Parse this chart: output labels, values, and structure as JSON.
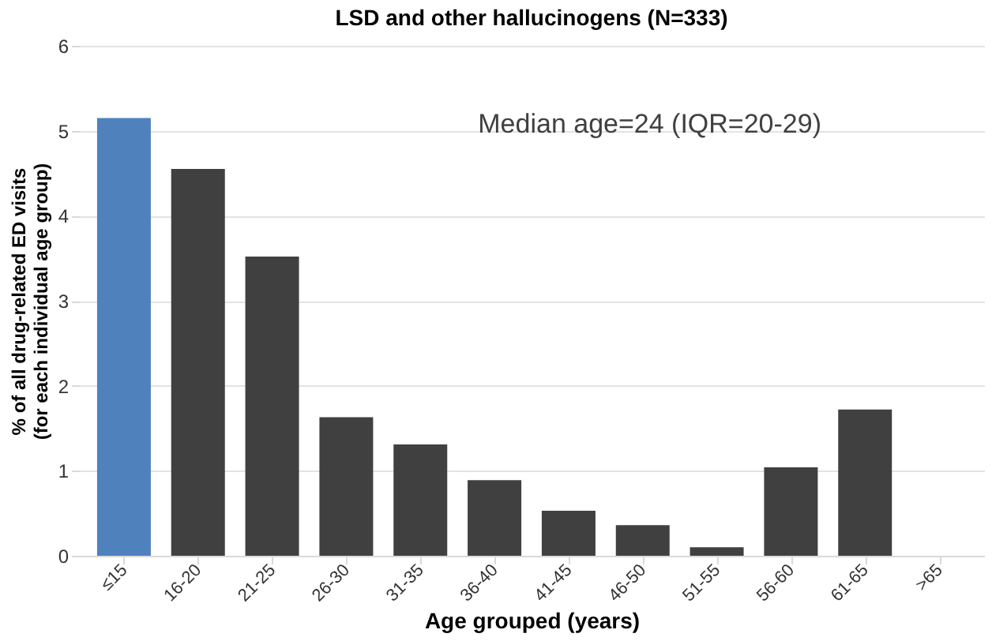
{
  "chart_data": {
    "type": "bar",
    "title": "LSD and other hallucinogens (N=333)",
    "xlabel": "Age grouped (years)",
    "ylabel": "% of all drug-related ED visits\n(for each individual age group)",
    "categories": [
      "≤15",
      "16-20",
      "21-25",
      "26-30",
      "31-35",
      "36-40",
      "41-45",
      "46-50",
      "51-55",
      "56-60",
      "61-65",
      ">65"
    ],
    "values": [
      5.15,
      4.55,
      3.52,
      1.63,
      1.31,
      0.89,
      0.53,
      0.36,
      0.1,
      1.04,
      1.72,
      0
    ],
    "colors": [
      "#4f81bd",
      "#404040",
      "#404040",
      "#404040",
      "#404040",
      "#404040",
      "#404040",
      "#404040",
      "#404040",
      "#404040",
      "#404040",
      "#404040"
    ],
    "ylim": [
      0,
      6
    ],
    "yticks": [
      0,
      1,
      2,
      3,
      4,
      5,
      6
    ],
    "grid": "y",
    "annotations": [
      "Median age=24 (IQR=20-29)"
    ]
  }
}
